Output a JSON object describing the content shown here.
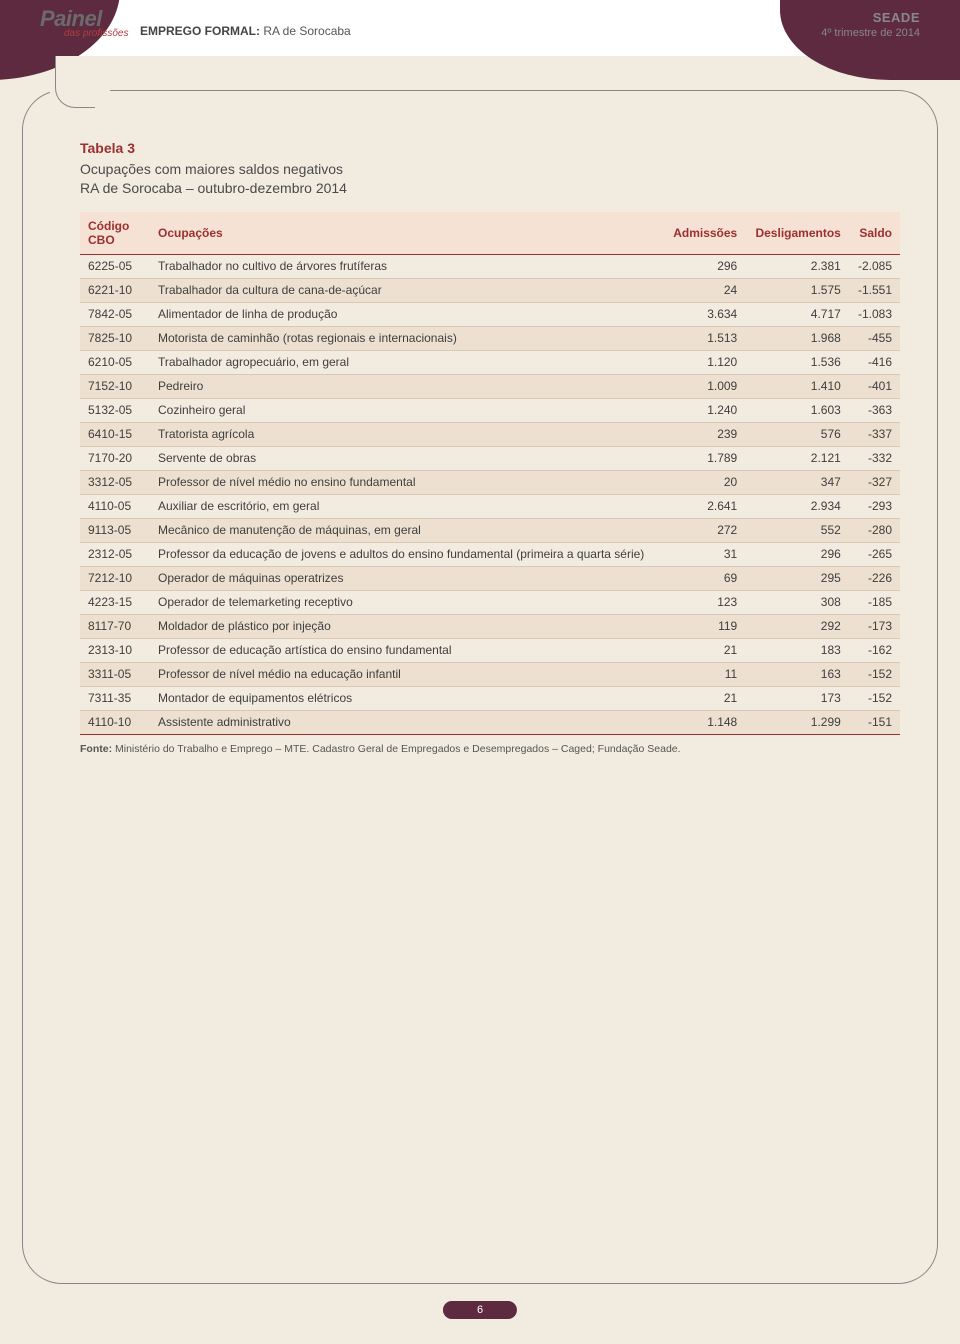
{
  "header": {
    "painel_title": "Painel",
    "painel_sub": "das profissões",
    "title_strong": "EMPREGO FORMAL:",
    "title_rest": " RA de Sorocaba",
    "seade": "SEADE",
    "period": "4º trimestre de 2014"
  },
  "table": {
    "label": "Tabela 3",
    "subtitle_line1": "Ocupações com maiores saldos negativos",
    "subtitle_line2": "RA de Sorocaba – outubro-dezembro 2014",
    "columns": {
      "codigo": "Código CBO",
      "ocupacoes": "Ocupações",
      "admissoes": "Admissões",
      "desligamentos": "Desligamentos",
      "saldo": "Saldo"
    },
    "rows": [
      {
        "codigo": "6225-05",
        "ocup": "Trabalhador no cultivo de árvores frutíferas",
        "adm": "296",
        "des": "2.381",
        "saldo": "-2.085"
      },
      {
        "codigo": "6221-10",
        "ocup": "Trabalhador da cultura de cana-de-açúcar",
        "adm": "24",
        "des": "1.575",
        "saldo": "-1.551"
      },
      {
        "codigo": "7842-05",
        "ocup": "Alimentador de linha de produção",
        "adm": "3.634",
        "des": "4.717",
        "saldo": "-1.083"
      },
      {
        "codigo": "7825-10",
        "ocup": "Motorista de caminhão (rotas regionais e internacionais)",
        "adm": "1.513",
        "des": "1.968",
        "saldo": "-455"
      },
      {
        "codigo": "6210-05",
        "ocup": "Trabalhador agropecuário, em geral",
        "adm": "1.120",
        "des": "1.536",
        "saldo": "-416"
      },
      {
        "codigo": "7152-10",
        "ocup": "Pedreiro",
        "adm": "1.009",
        "des": "1.410",
        "saldo": "-401"
      },
      {
        "codigo": "5132-05",
        "ocup": "Cozinheiro geral",
        "adm": "1.240",
        "des": "1.603",
        "saldo": "-363"
      },
      {
        "codigo": "6410-15",
        "ocup": "Tratorista agrícola",
        "adm": "239",
        "des": "576",
        "saldo": "-337"
      },
      {
        "codigo": "7170-20",
        "ocup": "Servente de obras",
        "adm": "1.789",
        "des": "2.121",
        "saldo": "-332"
      },
      {
        "codigo": "3312-05",
        "ocup": "Professor de nível médio no ensino fundamental",
        "adm": "20",
        "des": "347",
        "saldo": "-327"
      },
      {
        "codigo": "4110-05",
        "ocup": "Auxiliar de escritório, em geral",
        "adm": "2.641",
        "des": "2.934",
        "saldo": "-293"
      },
      {
        "codigo": "9113-05",
        "ocup": "Mecânico de manutenção de máquinas, em geral",
        "adm": "272",
        "des": "552",
        "saldo": "-280"
      },
      {
        "codigo": "2312-05",
        "ocup": "Professor da  educação de jovens e adultos do ensino fundamental (primeira a quarta série)",
        "adm": "31",
        "des": "296",
        "saldo": "-265"
      },
      {
        "codigo": "7212-10",
        "ocup": "Operador de máquinas operatrizes",
        "adm": "69",
        "des": "295",
        "saldo": "-226"
      },
      {
        "codigo": "4223-15",
        "ocup": "Operador de telemarketing receptivo",
        "adm": "123",
        "des": "308",
        "saldo": "-185"
      },
      {
        "codigo": "8117-70",
        "ocup": "Moldador de plástico por injeção",
        "adm": "119",
        "des": "292",
        "saldo": "-173"
      },
      {
        "codigo": "2313-10",
        "ocup": "Professor de educação artística do ensino fundamental",
        "adm": "21",
        "des": "183",
        "saldo": "-162"
      },
      {
        "codigo": "3311-05",
        "ocup": "Professor de nível médio na educação infantil",
        "adm": "11",
        "des": "163",
        "saldo": "-152"
      },
      {
        "codigo": "7311-35",
        "ocup": "Montador de equipamentos elétricos",
        "adm": "21",
        "des": "173",
        "saldo": "-152"
      },
      {
        "codigo": "4110-10",
        "ocup": "Assistente administrativo",
        "adm": "1.148",
        "des": "1.299",
        "saldo": "-151"
      }
    ],
    "fonte_label": "Fonte:",
    "fonte_text": " Ministério do Trabalho e Emprego – MTE. Cadastro Geral de Empregados e Desempregados – Caged; Fundação Seade."
  },
  "page_number": "6",
  "colors": {
    "brand_dark": "#5d2a3f",
    "accent_red": "#9c3030",
    "bg": "#f2ece0",
    "row_alt": "#ede0d0",
    "header_row": "#f5e2d4"
  }
}
